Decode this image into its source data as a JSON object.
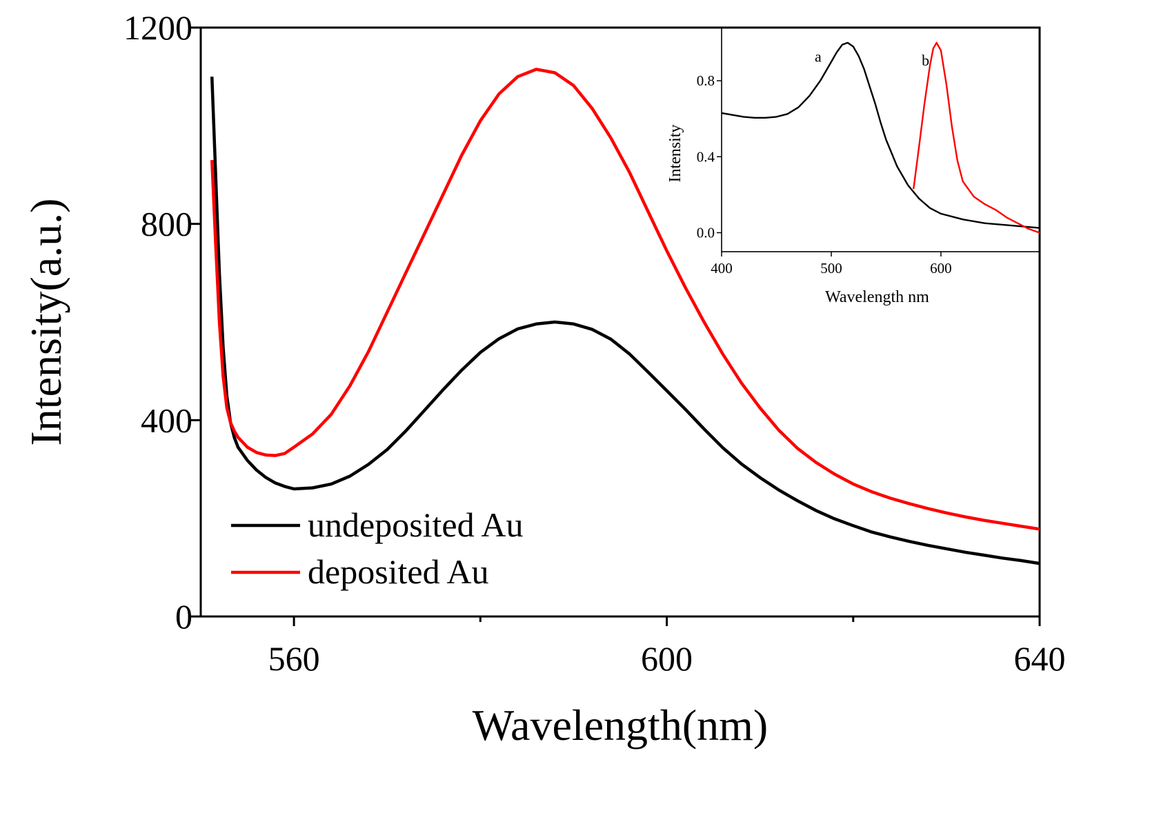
{
  "chart_data": [
    {
      "type": "line",
      "title": "",
      "xlabel": "Wavelength(nm)",
      "ylabel": "Intensity(a.u.)",
      "xlim": [
        550,
        640
      ],
      "ylim": [
        0,
        1200
      ],
      "xticks": [
        560,
        600,
        640
      ],
      "xtick_labels": [
        "560",
        "600",
        "640"
      ],
      "xminor": [
        580,
        620
      ],
      "yticks": [
        0,
        400,
        800,
        1200
      ],
      "ytick_labels": [
        "0",
        "400",
        "800",
        "1200"
      ],
      "grid": false,
      "legend_position": "bottom-left",
      "series": [
        {
          "name": "undeposited Au",
          "color": "#000000",
          "x": [
            551.2,
            551.6,
            552,
            552.4,
            552.8,
            553.2,
            553.6,
            554,
            555,
            556,
            557,
            558,
            559,
            560,
            562,
            564,
            566,
            568,
            570,
            572,
            574,
            576,
            578,
            580,
            582,
            584,
            586,
            588,
            590,
            592,
            594,
            596,
            598,
            600,
            602,
            604,
            606,
            608,
            610,
            612,
            614,
            616,
            618,
            620,
            622,
            624,
            626,
            628,
            630,
            632,
            634,
            636,
            638,
            640
          ],
          "y": [
            1100,
            900,
            700,
            550,
            450,
            395,
            365,
            345,
            318,
            298,
            283,
            272,
            265,
            260,
            262,
            270,
            286,
            310,
            340,
            378,
            420,
            462,
            502,
            538,
            566,
            586,
            596,
            600,
            596,
            585,
            565,
            535,
            498,
            460,
            422,
            382,
            344,
            311,
            283,
            258,
            236,
            216,
            199,
            185,
            172,
            162,
            153,
            145,
            138,
            131,
            125,
            119,
            114,
            108
          ]
        },
        {
          "name": "deposited Au",
          "color": "#ff0000",
          "x": [
            551.2,
            551.6,
            552,
            552.4,
            552.8,
            553.2,
            553.6,
            554,
            555,
            556,
            557,
            558,
            559,
            560,
            562,
            564,
            566,
            568,
            570,
            572,
            574,
            576,
            578,
            580,
            582,
            584,
            586,
            588,
            590,
            592,
            594,
            596,
            598,
            600,
            602,
            604,
            606,
            608,
            610,
            612,
            614,
            616,
            618,
            620,
            622,
            624,
            626,
            628,
            630,
            632,
            634,
            636,
            638,
            640
          ],
          "y": [
            930,
            760,
            600,
            490,
            425,
            395,
            378,
            365,
            345,
            334,
            329,
            328,
            332,
            345,
            372,
            412,
            470,
            540,
            620,
            700,
            780,
            860,
            940,
            1010,
            1065,
            1100,
            1115,
            1108,
            1082,
            1035,
            975,
            905,
            825,
            745,
            670,
            600,
            535,
            476,
            425,
            380,
            343,
            314,
            290,
            270,
            254,
            241,
            230,
            220,
            211,
            203,
            196,
            190,
            184,
            178
          ]
        }
      ]
    },
    {
      "type": "line",
      "title": "",
      "xlabel": "Wavelength nm",
      "ylabel": "Intensity",
      "xlim": [
        400,
        690
      ],
      "ylim": [
        -0.1,
        1.08
      ],
      "xticks": [
        400,
        500,
        600
      ],
      "xtick_labels": [
        "400",
        "500",
        "600"
      ],
      "yticks": [
        0.0,
        0.4,
        0.8
      ],
      "ytick_labels": [
        "0.0",
        "0.4",
        "0.8"
      ],
      "grid": false,
      "legend_position": "none",
      "annotations": [
        {
          "text": "a",
          "x": 488,
          "y": 0.9
        },
        {
          "text": "b",
          "x": 586,
          "y": 0.88
        }
      ],
      "series": [
        {
          "name": "a",
          "color": "#000000",
          "x": [
            400,
            410,
            420,
            430,
            440,
            450,
            460,
            470,
            480,
            490,
            500,
            505,
            510,
            515,
            520,
            525,
            530,
            535,
            540,
            545,
            550,
            560,
            570,
            580,
            590,
            600,
            620,
            640,
            660,
            680,
            690
          ],
          "y": [
            0.63,
            0.62,
            0.61,
            0.605,
            0.605,
            0.61,
            0.625,
            0.66,
            0.72,
            0.8,
            0.9,
            0.95,
            0.99,
            1.0,
            0.98,
            0.93,
            0.86,
            0.77,
            0.68,
            0.58,
            0.49,
            0.35,
            0.25,
            0.18,
            0.13,
            0.1,
            0.07,
            0.05,
            0.04,
            0.03,
            0.025
          ]
        },
        {
          "name": "b",
          "color": "#ff0000",
          "x": [
            575,
            580,
            585,
            590,
            593,
            596,
            600,
            605,
            610,
            615,
            620,
            630,
            640,
            650,
            660,
            670,
            680,
            690
          ],
          "y": [
            0.23,
            0.45,
            0.68,
            0.88,
            0.97,
            1.0,
            0.96,
            0.78,
            0.56,
            0.38,
            0.27,
            0.19,
            0.15,
            0.12,
            0.08,
            0.05,
            0.02,
            0.0
          ]
        }
      ]
    }
  ]
}
